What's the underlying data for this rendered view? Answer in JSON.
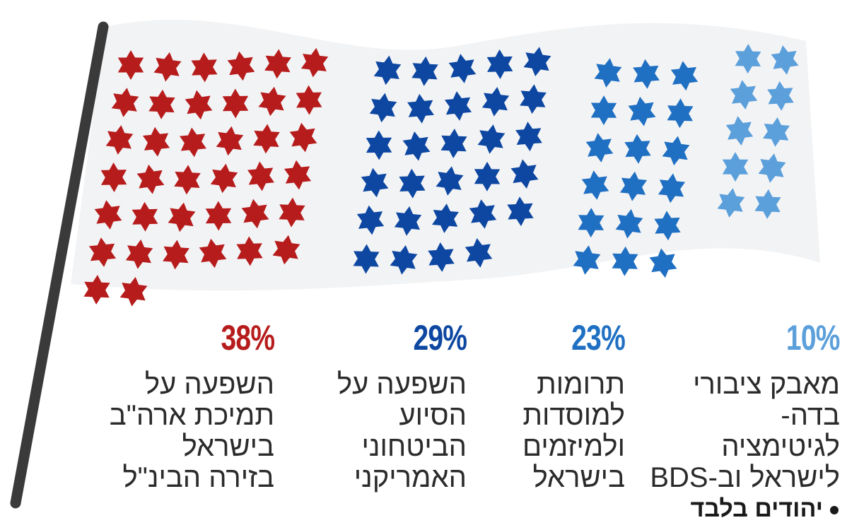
{
  "chart_data": {
    "type": "pictograph",
    "unit": "star",
    "categories": [
      {
        "percent": "38%",
        "value": 38,
        "color": "#b71c1c",
        "lines": [
          "השפעה על",
          "תמיכת ארה\"ב",
          "בישראל",
          "בזירה הבינ\"ל"
        ]
      },
      {
        "percent": "29%",
        "value": 29,
        "color": "#0d47a1",
        "lines": [
          "השפעה על",
          "הסיוע",
          "הביטחוני",
          "האמריקני"
        ]
      },
      {
        "percent": "23%",
        "value": 23,
        "color": "#1f6fc2",
        "lines": [
          "תרומות",
          "למוסדות",
          "ולמיזמים",
          "בישראל"
        ]
      },
      {
        "percent": "10%",
        "value": 10,
        "color": "#5b9fdb",
        "lines": [
          "מאבק ציבורי",
          "בדה-",
          "לגיטימציה",
          "לישראל וב-BDS"
        ]
      }
    ],
    "note": "יהודים בלבד"
  },
  "colors": {
    "pole": "#3a3a3a",
    "flag_cloth": "#f2f3f5",
    "text": "#2b2b2b"
  }
}
